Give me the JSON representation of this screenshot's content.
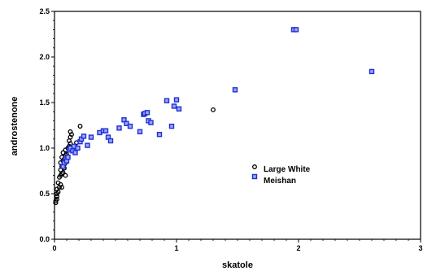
{
  "chart_data": {
    "type": "scatter",
    "title": "",
    "xlabel": "skatole",
    "ylabel": "androstenone",
    "xlim": [
      0,
      3
    ],
    "ylim": [
      0,
      2.5
    ],
    "x_ticks": [
      0,
      1,
      2,
      3
    ],
    "y_ticks": [
      0.0,
      0.5,
      1.0,
      1.5,
      2.0,
      2.5
    ],
    "x_tick_labels": [
      "0",
      "1",
      "2",
      "3"
    ],
    "y_tick_labels": [
      "0.0",
      "0.5",
      "1.0",
      "1.5",
      "2.0",
      "2.5"
    ],
    "grid": false,
    "legend_position": "inside-right",
    "series": [
      {
        "name": "Large White",
        "marker": "circle",
        "color": "#000000",
        "points": [
          [
            0.01,
            0.4
          ],
          [
            0.01,
            0.42
          ],
          [
            0.02,
            0.44
          ],
          [
            0.02,
            0.47
          ],
          [
            0.02,
            0.5
          ],
          [
            0.03,
            0.52
          ],
          [
            0.02,
            0.55
          ],
          [
            0.04,
            0.57
          ],
          [
            0.05,
            0.6
          ],
          [
            0.06,
            0.57
          ],
          [
            0.03,
            0.62
          ],
          [
            0.04,
            0.68
          ],
          [
            0.05,
            0.7
          ],
          [
            0.06,
            0.72
          ],
          [
            0.07,
            0.73
          ],
          [
            0.05,
            0.76
          ],
          [
            0.06,
            0.8
          ],
          [
            0.08,
            0.82
          ],
          [
            0.05,
            0.84
          ],
          [
            0.07,
            0.86
          ],
          [
            0.08,
            0.88
          ],
          [
            0.06,
            0.9
          ],
          [
            0.09,
            0.92
          ],
          [
            0.07,
            0.95
          ],
          [
            0.1,
            0.93
          ],
          [
            0.09,
            0.98
          ],
          [
            0.11,
            1.0
          ],
          [
            0.12,
            1.02
          ],
          [
            0.13,
            1.05
          ],
          [
            0.12,
            1.08
          ],
          [
            0.13,
            1.12
          ],
          [
            0.14,
            1.15
          ],
          [
            0.13,
            1.18
          ],
          [
            0.17,
            1.02
          ],
          [
            0.18,
            1.06
          ],
          [
            0.21,
            1.24
          ],
          [
            0.08,
            0.78
          ],
          [
            0.1,
            0.85
          ],
          [
            0.09,
            0.7
          ],
          [
            1.3,
            1.42
          ]
        ]
      },
      {
        "name": "Meishan",
        "marker": "square",
        "color": "#1f2fd0",
        "points": [
          [
            0.07,
            0.8
          ],
          [
            0.08,
            0.84
          ],
          [
            0.09,
            0.88
          ],
          [
            0.1,
            0.86
          ],
          [
            0.11,
            0.9
          ],
          [
            0.12,
            0.98
          ],
          [
            0.13,
            1.0
          ],
          [
            0.15,
            0.97
          ],
          [
            0.16,
            1.02
          ],
          [
            0.17,
            0.95
          ],
          [
            0.19,
            1.0
          ],
          [
            0.21,
            1.07
          ],
          [
            0.22,
            1.1
          ],
          [
            0.24,
            1.13
          ],
          [
            0.27,
            1.03
          ],
          [
            0.3,
            1.12
          ],
          [
            0.37,
            1.17
          ],
          [
            0.4,
            1.19
          ],
          [
            0.42,
            1.19
          ],
          [
            0.44,
            1.12
          ],
          [
            0.46,
            1.08
          ],
          [
            0.53,
            1.22
          ],
          [
            0.57,
            1.31
          ],
          [
            0.59,
            1.27
          ],
          [
            0.62,
            1.24
          ],
          [
            0.7,
            1.18
          ],
          [
            0.73,
            1.37
          ],
          [
            0.74,
            1.38
          ],
          [
            0.76,
            1.39
          ],
          [
            0.77,
            1.3
          ],
          [
            0.79,
            1.28
          ],
          [
            0.86,
            1.15
          ],
          [
            0.92,
            1.52
          ],
          [
            0.96,
            1.24
          ],
          [
            0.98,
            1.46
          ],
          [
            1.0,
            1.53
          ],
          [
            1.02,
            1.43
          ],
          [
            1.48,
            1.64
          ],
          [
            1.96,
            2.3
          ],
          [
            1.98,
            2.3
          ],
          [
            2.6,
            1.84
          ]
        ]
      }
    ]
  }
}
